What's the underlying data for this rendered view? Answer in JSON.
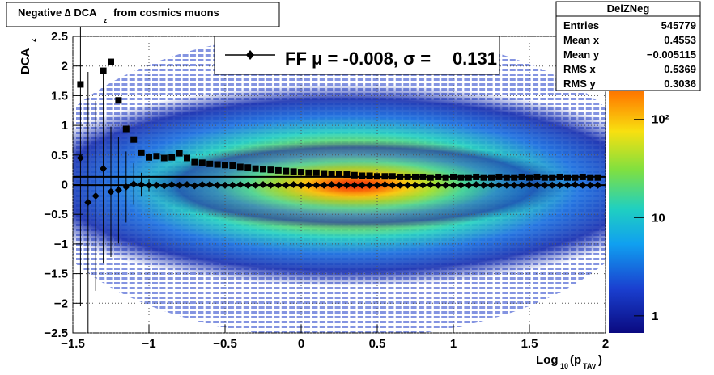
{
  "chart_data": {
    "type": "scatter",
    "title": [
      "Negative ∆ DCA",
      "z",
      "from cosmics muons"
    ],
    "ylabel": [
      "DCA",
      "z"
    ],
    "xlabel": [
      "Log",
      "10",
      "(p",
      "TAv",
      ")"
    ],
    "xlim": [
      -1.5,
      2
    ],
    "ylim": [
      -2.5,
      2.5
    ],
    "xticks": [
      {
        "value": -1.5,
        "label": "−1.5"
      },
      {
        "value": -1,
        "label": "−1"
      },
      {
        "value": -0.5,
        "label": "−0.5"
      },
      0,
      0.5,
      1,
      1.5,
      2
    ],
    "yticks": [
      {
        "value": -2.5,
        "label": "−2.5"
      },
      {
        "value": -2,
        "label": "−2"
      },
      {
        "value": -1.5,
        "label": "−1.5"
      },
      {
        "value": -1,
        "label": "−1"
      },
      {
        "value": -0.5,
        "label": "−0.5"
      },
      0,
      0.5,
      1,
      1.5,
      2,
      2.5
    ],
    "grid": true,
    "zlim": [
      0.67,
      700
    ],
    "zlog": true,
    "zticks": [
      1,
      10,
      {
        "value": 100,
        "label": "10²"
      }
    ],
    "x": [
      -1.45,
      -1.4,
      -1.35,
      -1.3,
      -1.25,
      -1.2,
      -1.15,
      -1.1,
      -1.05,
      -1,
      -0.95,
      -0.9,
      -0.85,
      -0.8,
      -0.75,
      -0.7,
      -0.65,
      -0.6,
      -0.55,
      -0.5,
      -0.45,
      -0.4,
      -0.35,
      -0.3,
      -0.25,
      -0.2,
      -0.15,
      -0.1,
      -0.05,
      0,
      0.05,
      0.1,
      0.15,
      0.2,
      0.25,
      0.3,
      0.35,
      0.4,
      0.45,
      0.5,
      0.55,
      0.6,
      0.65,
      0.7,
      0.75,
      0.8,
      0.85,
      0.9,
      0.95,
      1,
      1.05,
      1.1,
      1.15,
      1.2,
      1.25,
      1.3,
      1.35,
      1.4,
      1.45,
      1.5,
      1.55,
      1.6,
      1.65,
      1.7,
      1.75,
      1.8,
      1.85,
      1.9,
      1.95
    ],
    "series": [
      {
        "color": "#000000",
        "marker": "diamond",
        "values": [
          0.45,
          -0.3,
          -0.19,
          0.27,
          -0.12,
          -0.09,
          -0.04,
          0.01,
          0,
          -0.01,
          -0.01,
          -0.02,
          0,
          -0.01,
          0,
          -0.02,
          0,
          0,
          -0.01,
          -0.01,
          -0.01,
          0,
          -0.01,
          -0.01,
          0,
          -0.01,
          -0.01,
          -0.01,
          0,
          -0.01,
          -0.01,
          -0.01,
          -0.01,
          0,
          -0.01,
          -0.01,
          -0.01,
          -0.01,
          -0.01,
          -0.01,
          0,
          -0.01,
          -0.01,
          -0.01,
          -0.01,
          -0.01,
          0,
          -0.01,
          -0.01,
          -0.01,
          -0.01,
          -0.01,
          0,
          -0.01,
          -0.01,
          -0.01,
          -0.01,
          -0.01,
          -0.01,
          0,
          -0.01,
          -0.01,
          -0.01,
          -0.01,
          -0.01,
          0,
          -0.01,
          -0.01,
          -0.01
        ],
        "errors": [
          2.5,
          2.2,
          1.6,
          1.6,
          1.1,
          0.9,
          0.6,
          0.35,
          0.2,
          0.1,
          null,
          null,
          null,
          null,
          null,
          null,
          null,
          null,
          null,
          null,
          null,
          null,
          null,
          null,
          null,
          null,
          null,
          null,
          null,
          null,
          null,
          null,
          null,
          null,
          null,
          null,
          null,
          null,
          null,
          null,
          null,
          null,
          null,
          null,
          null,
          null,
          null,
          null,
          null,
          null,
          null,
          null,
          null,
          null,
          null,
          null,
          null,
          null,
          null,
          null,
          null,
          null,
          null,
          null,
          null,
          null,
          null,
          null,
          null
        ]
      },
      {
        "color": "#000000",
        "marker": "square",
        "values": [
          1.69,
          null,
          null,
          1.92,
          2.07,
          1.42,
          0.94,
          0.76,
          0.54,
          0.46,
          0.48,
          0.45,
          0.46,
          0.53,
          0.45,
          0.38,
          0.37,
          0.35,
          0.34,
          0.33,
          0.32,
          0.3,
          0.29,
          0.27,
          0.26,
          0.25,
          0.24,
          0.23,
          0.22,
          0.21,
          0.2,
          0.2,
          0.19,
          0.18,
          0.18,
          0.17,
          0.16,
          0.15,
          0.15,
          0.14,
          0.14,
          0.14,
          0.13,
          0.13,
          0.13,
          0.13,
          0.12,
          0.13,
          0.12,
          0.13,
          0.12,
          0.12,
          0.13,
          0.12,
          0.12,
          0.13,
          0.12,
          0.12,
          0.13,
          0.12,
          0.13,
          0.12,
          0.12,
          0.13,
          0.12,
          0.12,
          0.13,
          0.12,
          0.12
        ]
      }
    ],
    "fit": {
      "label": [
        "FF μ = -0.008, σ = ",
        "0.131"
      ],
      "mean": -0.008,
      "sigma": 0.131
    },
    "stats": {
      "title": "DelZNeg",
      "rows": [
        [
          "Entries",
          "545779"
        ],
        [
          "Mean x",
          "0.4553"
        ],
        [
          "Mean y",
          "−0.005115"
        ],
        [
          "RMS x",
          "0.5369"
        ],
        [
          "RMS y",
          "0.3036"
        ]
      ]
    }
  }
}
